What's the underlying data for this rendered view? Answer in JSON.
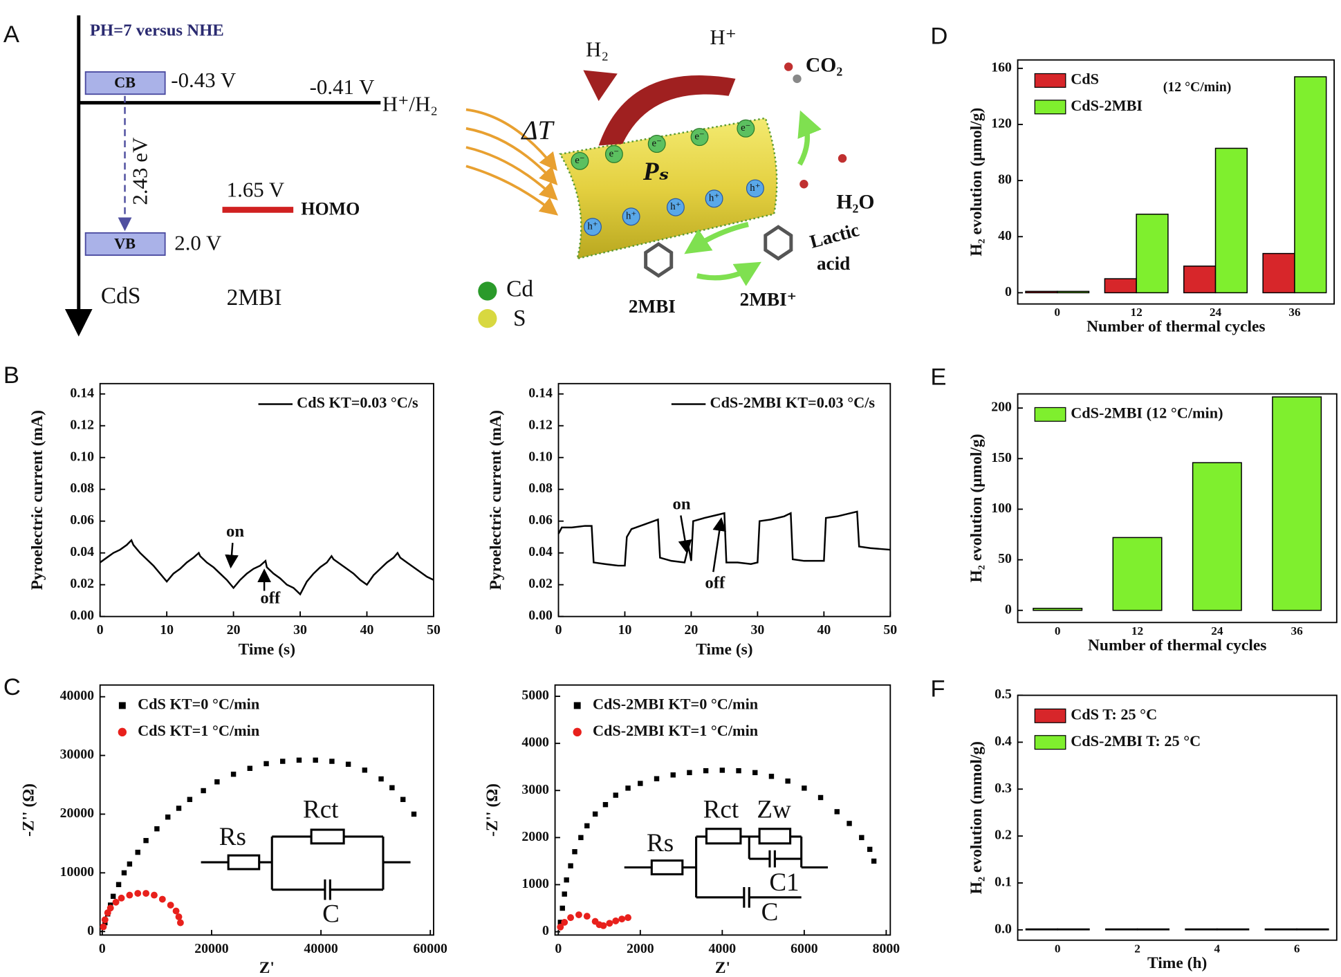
{
  "panel_labels": [
    "A",
    "B",
    "C",
    "D",
    "E",
    "F"
  ],
  "diagram": {
    "reference": "PH=7 versus NHE",
    "cb": "CB",
    "cb_potential": "-0.43 V",
    "h_potential": "-0.41 V",
    "h_couple": "H⁺/H₂",
    "gap": "2.43 eV",
    "homo_potential": "1.65 V",
    "homo": "HOMO",
    "vb": "VB",
    "vb_potential": "2.0 V",
    "cds": "CdS",
    "mbi": "2MBI"
  },
  "illustration": {
    "delta_t": "ΔT",
    "h2": "H₂",
    "h_plus": "H⁺",
    "co2": "CO₂",
    "polarization": "Pₛ",
    "h2o": "H₂O",
    "lactic_acid": [
      "Lactic",
      "acid"
    ],
    "mbi": "2MBI",
    "mbi_plus": "2MBI⁺",
    "cd": "Cd",
    "s": "S",
    "electron": "e⁻",
    "hole": "h⁺"
  },
  "chart_data": [
    {
      "type": "line",
      "x_label": "Time (s)",
      "y_label": "Pyroelectric current (mA)",
      "xlim": [
        0,
        50
      ],
      "ylim": [
        0,
        0.1465
      ],
      "xticks": [
        0,
        10,
        20,
        30,
        40,
        50
      ],
      "yticks": [
        {
          "value": 0,
          "label": "0.00"
        },
        {
          "value": 0.02,
          "label": "0.02"
        },
        {
          "value": 0.04,
          "label": "0.04"
        },
        {
          "value": 0.06,
          "label": "0.06"
        },
        {
          "value": 0.08,
          "label": "0.08"
        },
        {
          "value": 0.1,
          "label": "0.10"
        },
        {
          "value": 0.12,
          "label": "0.12"
        },
        {
          "value": 0.14,
          "label": "0.14"
        }
      ],
      "legend": "upper right",
      "annotations": [
        "on",
        "off"
      ],
      "series": [
        {
          "name": "CdS KT=0.03 °C/s",
          "color": "#000000",
          "x": [
            0,
            1,
            2,
            3,
            4,
            4.7,
            5,
            6,
            7,
            8,
            9,
            10,
            11,
            12,
            13,
            14,
            14.8,
            15,
            16,
            17,
            18,
            19,
            20,
            21,
            22,
            23,
            24,
            24.8,
            25,
            26,
            27,
            28,
            29,
            30,
            31,
            32,
            33,
            34,
            34.7,
            35,
            36,
            37,
            38,
            39,
            40,
            41,
            42,
            43,
            44,
            44.6,
            45,
            46,
            47,
            48,
            49,
            50
          ],
          "values": [
            0.034,
            0.037,
            0.04,
            0.042,
            0.045,
            0.048,
            0.045,
            0.04,
            0.036,
            0.032,
            0.027,
            0.022,
            0.027,
            0.03,
            0.034,
            0.037,
            0.04,
            0.038,
            0.034,
            0.031,
            0.027,
            0.023,
            0.018,
            0.023,
            0.027,
            0.03,
            0.032,
            0.035,
            0.031,
            0.027,
            0.024,
            0.02,
            0.018,
            0.014,
            0.022,
            0.027,
            0.031,
            0.034,
            0.038,
            0.036,
            0.033,
            0.03,
            0.027,
            0.023,
            0.02,
            0.026,
            0.03,
            0.034,
            0.037,
            0.04,
            0.037,
            0.034,
            0.031,
            0.028,
            0.025,
            0.023
          ]
        }
      ]
    },
    {
      "type": "line",
      "x_label": "Time (s)",
      "y_label": "Pyroelectric current (mA)",
      "xlim": [
        0,
        50
      ],
      "ylim": [
        0,
        0.1465
      ],
      "xticks": [
        0,
        10,
        20,
        30,
        40,
        50
      ],
      "yticks": [
        {
          "value": 0,
          "label": "0.00"
        },
        {
          "value": 0.02,
          "label": "0.02"
        },
        {
          "value": 0.04,
          "label": "0.04"
        },
        {
          "value": 0.06,
          "label": "0.06"
        },
        {
          "value": 0.08,
          "label": "0.08"
        },
        {
          "value": 0.1,
          "label": "0.10"
        },
        {
          "value": 0.12,
          "label": "0.12"
        },
        {
          "value": 0.14,
          "label": "0.14"
        }
      ],
      "legend": "upper right",
      "annotations": [
        "on",
        "off"
      ],
      "series": [
        {
          "name": "CdS-2MBI KT=0.03 °C/s",
          "color": "#000000",
          "x": [
            0,
            0.5,
            2,
            4,
            5,
            5.3,
            7,
            9,
            10,
            10.3,
            11,
            13,
            15,
            15.3,
            17,
            19,
            19.6,
            20,
            20.3,
            22,
            24,
            25,
            25.3,
            27,
            29,
            30,
            30.3,
            32,
            34,
            35,
            35.3,
            37,
            39,
            40,
            40.3,
            42,
            44,
            45,
            45.3,
            47,
            50
          ],
          "values": [
            0.052,
            0.056,
            0.056,
            0.057,
            0.057,
            0.034,
            0.033,
            0.032,
            0.032,
            0.05,
            0.055,
            0.058,
            0.061,
            0.037,
            0.035,
            0.034,
            0.044,
            0.035,
            0.06,
            0.062,
            0.064,
            0.065,
            0.034,
            0.034,
            0.033,
            0.034,
            0.06,
            0.061,
            0.063,
            0.065,
            0.036,
            0.035,
            0.035,
            0.035,
            0.062,
            0.063,
            0.065,
            0.066,
            0.044,
            0.043,
            0.042
          ]
        }
      ]
    },
    {
      "type": "scatter",
      "x_label": "Z'",
      "y_label": "-Z'' (Ω)",
      "xlim": [
        -400,
        60600
      ],
      "ylim": [
        -600,
        42000
      ],
      "xticks": [
        0,
        20000,
        40000,
        60000
      ],
      "yticks": [
        0,
        10000,
        20000,
        30000,
        40000
      ],
      "legend": "upper left",
      "annotations": [
        "Rs",
        "Rct",
        "C"
      ],
      "series": [
        {
          "name": "CdS KT=0 °C/min",
          "color": "#000000",
          "marker": "square",
          "x": [
            500,
            1000,
            1500,
            2000,
            3000,
            4000,
            5000,
            6500,
            8000,
            10000,
            12000,
            14000,
            16000,
            18500,
            21000,
            24000,
            27000,
            30000,
            33000,
            36000,
            39000,
            42000,
            45000,
            48000,
            51000,
            53000,
            55000,
            57000
          ],
          "values": [
            1500,
            3000,
            4500,
            6000,
            8000,
            10000,
            11500,
            13500,
            15500,
            17500,
            19500,
            21000,
            22500,
            24000,
            25500,
            26800,
            27800,
            28600,
            29000,
            29200,
            29200,
            29000,
            28500,
            27500,
            26000,
            24500,
            22500,
            20000
          ]
        },
        {
          "name": "CdS KT=1 °C/min",
          "color": "#e8201c",
          "marker": "circle",
          "x": [
            200,
            500,
            1000,
            1500,
            2500,
            3500,
            5000,
            6500,
            8000,
            9500,
            11000,
            12500,
            13500,
            14000,
            14300
          ],
          "values": [
            800,
            2000,
            3200,
            4000,
            5000,
            5700,
            6200,
            6500,
            6500,
            6200,
            5500,
            4500,
            3500,
            2500,
            1500
          ]
        }
      ]
    },
    {
      "type": "scatter",
      "x_label": "Z'",
      "y_label": "-Z'' (Ω)",
      "xlim": [
        -80,
        8100
      ],
      "ylim": [
        -70,
        5240
      ],
      "xticks": [
        0,
        2000,
        4000,
        6000,
        8000
      ],
      "yticks": [
        0,
        1000,
        2000,
        3000,
        4000,
        5000
      ],
      "legend": "upper left",
      "annotations": [
        "Rs",
        "Rct",
        "Zw",
        "C1",
        "C"
      ],
      "series": [
        {
          "name": "CdS-2MBI KT=0 °C/min",
          "color": "#000000",
          "marker": "square",
          "x": [
            50,
            100,
            150,
            200,
            300,
            400,
            550,
            700,
            900,
            1150,
            1400,
            1700,
            2000,
            2400,
            2800,
            3200,
            3600,
            4000,
            4400,
            4800,
            5200,
            5600,
            6000,
            6400,
            6800,
            7100,
            7400,
            7600,
            7700
          ],
          "values": [
            200,
            500,
            800,
            1100,
            1400,
            1700,
            2000,
            2250,
            2500,
            2700,
            2900,
            3050,
            3150,
            3250,
            3330,
            3380,
            3420,
            3430,
            3420,
            3380,
            3300,
            3200,
            3050,
            2850,
            2550,
            2300,
            2000,
            1750,
            1500
          ]
        },
        {
          "name": "CdS-2MBI KT=1 °C/min",
          "color": "#e8201c",
          "marker": "circle",
          "x": [
            50,
            150,
            300,
            500,
            700,
            900,
            1000,
            1100,
            1250,
            1400,
            1550,
            1700
          ],
          "values": [
            100,
            200,
            300,
            360,
            330,
            220,
            150,
            130,
            180,
            230,
            270,
            300
          ]
        }
      ]
    },
    {
      "type": "bar",
      "x_label": "Number of thermal cycles",
      "y_label": "H₂ evolution (μmol/g)",
      "ylim": [
        -8,
        166
      ],
      "yticks": [
        0,
        40,
        80,
        120,
        160
      ],
      "categories": [
        "0",
        "12",
        "24",
        "36"
      ],
      "legend": "upper left",
      "annotations": [
        "(12 °C/min)"
      ],
      "series": [
        {
          "name": "CdS",
          "color": "#d7262a",
          "values": [
            1,
            10,
            19,
            28
          ]
        },
        {
          "name": "CdS-2MBI",
          "color": "#7fef2e",
          "values": [
            1,
            56,
            103,
            154
          ]
        }
      ]
    },
    {
      "type": "bar",
      "x_label": "Number of thermal cycles",
      "y_label": "H₂ evolution (μmol/g)",
      "ylim": [
        -12,
        214
      ],
      "yticks": [
        0,
        50,
        100,
        150,
        200
      ],
      "categories": [
        "0",
        "12",
        "24",
        "36"
      ],
      "legend": "upper left",
      "series": [
        {
          "name": "CdS-2MBI (12 °C/min)",
          "color": "#7fef2e",
          "values": [
            2,
            72,
            146,
            211
          ]
        }
      ]
    },
    {
      "type": "bar",
      "x_label": "Time (h)",
      "y_label": "H₂ evolution (mmol/g)",
      "ylim": [
        -0.022,
        0.5
      ],
      "yticks": [
        {
          "value": 0,
          "label": "0.0"
        },
        0.1,
        0.2,
        0.3,
        0.4,
        0.5
      ],
      "categories": [
        "0",
        "2",
        "4",
        "6"
      ],
      "legend": "upper left",
      "series": [
        {
          "name": "CdS   T: 25 °C",
          "color": "#d7262a",
          "values": [
            0.002,
            0.002,
            0.002,
            0.002
          ]
        },
        {
          "name": "CdS-2MBI   T: 25 °C",
          "color": "#7fef2e",
          "values": [
            0.002,
            0.002,
            0.002,
            0.002
          ]
        }
      ]
    }
  ]
}
